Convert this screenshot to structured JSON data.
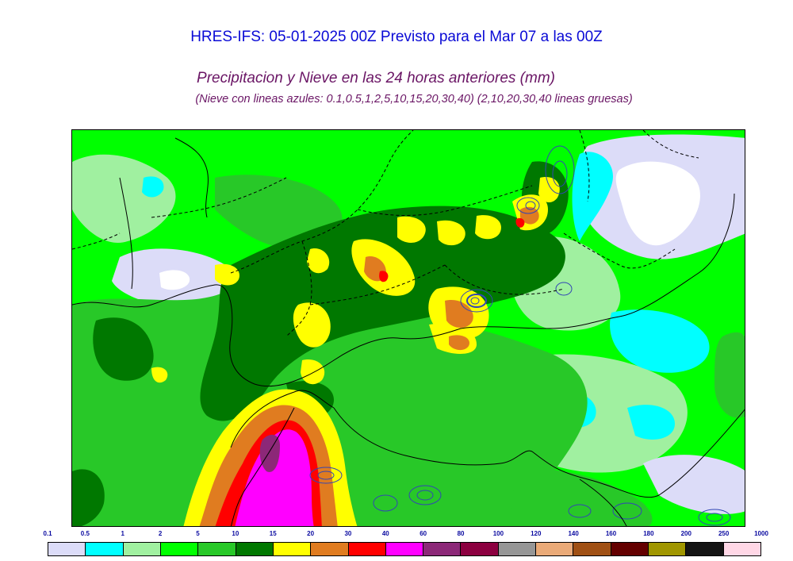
{
  "header": {
    "title": "HRES-IFS: 05-01-2025 00Z Previsto para el Mar 07 a las 00Z",
    "subtitle": "Precipitacion y Nieve en las 24 horas anteriores (mm)",
    "note": "(Nieve con lineas azules: 0.1,0.5,1,2,5,10,15,20,30,40)  (2,10,20,30,40 lineas gruesas)"
  },
  "legend": {
    "labels": [
      "0.1",
      "0.5",
      "1",
      "2",
      "5",
      "10",
      "15",
      "20",
      "30",
      "40",
      "60",
      "80",
      "100",
      "120",
      "140",
      "160",
      "180",
      "200",
      "250",
      "1000"
    ],
    "colors": [
      "#dcdcf8",
      "#00ffff",
      "#a0f0a0",
      "#00ff00",
      "#28c828",
      "#007800",
      "#ffff00",
      "#e07c20",
      "#ff0000",
      "#ff00ff",
      "#8c2878",
      "#8c0040",
      "#969696",
      "#eaaa78",
      "#a05014",
      "#640000",
      "#a09600",
      "#141414",
      "#ffd7e6"
    ]
  },
  "map": {
    "colors": {
      "ocean_base": "#a0f0a0",
      "land_base": "#28c828",
      "sea_light": "#00ff00",
      "snow_contour": "#3246b4",
      "border": "#000000"
    }
  }
}
